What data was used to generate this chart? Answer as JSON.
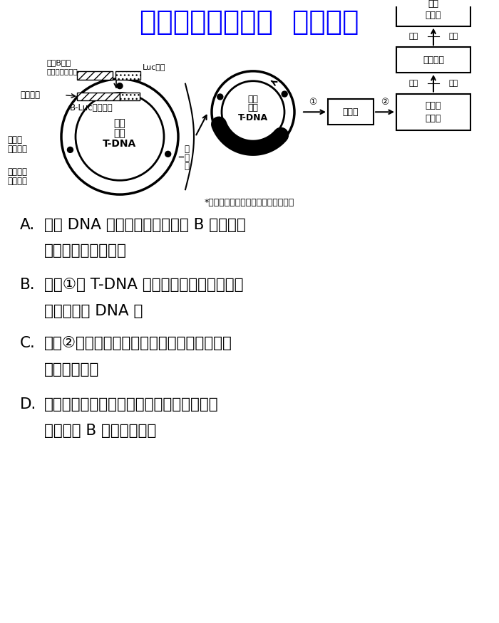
{
  "watermark_text": "微信公众号关注：  趋找答案",
  "watermark_color": "#0000FF",
  "watermark_fontsize": 28,
  "bg_color": "#FFFFFF",
  "annotation_text": "*可在水稻卵细胞中启动转录的启动子",
  "options": [
    {
      "label": "A.",
      "line1": "由于 DNA 聚合酶不能合成导致 B 基因在水",
      "line2": "稻卵细胞中不能转录"
    },
    {
      "label": "B.",
      "line1": "过程①中 T-DNA 以双链形式整合到受体细",
      "line2": "胞的染色体 DNA 上"
    },
    {
      "label": "C.",
      "line1": "过程②转化筛选水稻愈伤组织时，需在培养基",
      "line2": "中加入潮霉素"
    },
    {
      "label": "D.",
      "line1": "可通过检测加入荧光素的卵细胞中是否发出",
      "line2": "荧光鉴定 B 基因是否表达"
    }
  ]
}
